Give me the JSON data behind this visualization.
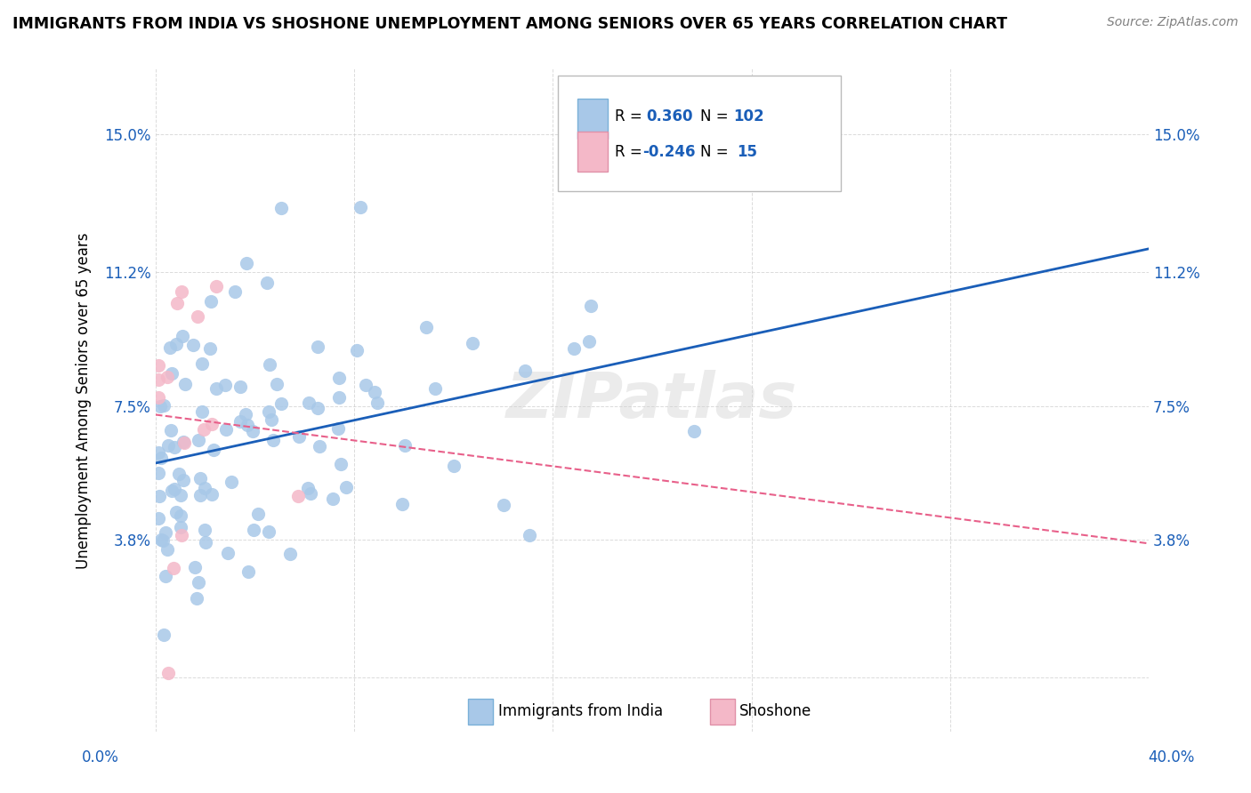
{
  "title": "IMMIGRANTS FROM INDIA VS SHOSHONE UNEMPLOYMENT AMONG SENIORS OVER 65 YEARS CORRELATION CHART",
  "source": "Source: ZipAtlas.com",
  "ylabel": "Unemployment Among Seniors over 65 years",
  "yticks": [
    0.0,
    0.038,
    0.075,
    0.112,
    0.15
  ],
  "ytick_labels": [
    "",
    "3.8%",
    "7.5%",
    "11.2%",
    "15.0%"
  ],
  "xlim": [
    0.0,
    0.4
  ],
  "ylim": [
    -0.015,
    0.168
  ],
  "legend_color1": "#a8c8e8",
  "legend_color2": "#f4b8c8",
  "scatter_india_color": "#a8c8e8",
  "scatter_shoshone_color": "#f4b8c8",
  "line_india_color": "#1a5eb8",
  "line_shoshone_color": "#e8608a",
  "watermark": "ZIPatlas",
  "india_r": 0.36,
  "india_n": 102,
  "shoshone_r": -0.246,
  "shoshone_n": 15
}
